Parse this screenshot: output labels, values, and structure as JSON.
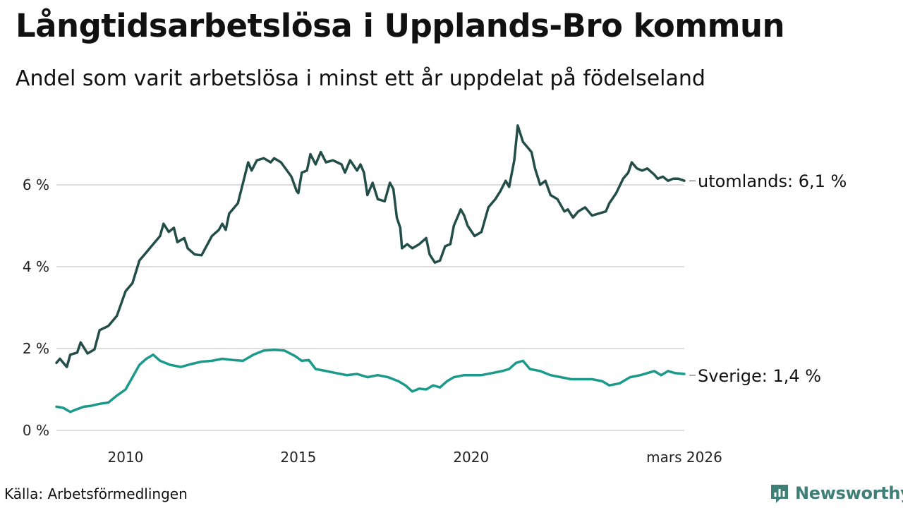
{
  "header": {
    "title": "Långtidsarbetslösa i Upplands-Bro kommun",
    "subtitle": "Andel som varit arbetslösa i minst ett år uppdelat på födelseland"
  },
  "footer": {
    "source": "Källa: Arbetsförmedlingen",
    "brand": "Newsworthy"
  },
  "colors": {
    "utomlands": "#234d48",
    "sverige": "#1b9a8c",
    "grid": "#dddddd",
    "brand": "#3f7f77"
  },
  "chart_data": {
    "type": "line",
    "title": "Långtidsarbetslösa i Upplands-Bro kommun",
    "subtitle": "Andel som varit arbetslösa i minst ett år uppdelat på födelseland",
    "xlabel": "",
    "ylabel": "",
    "grid": true,
    "xlim": [
      2008.0,
      2026.17
    ],
    "ylim": [
      0,
      7.5
    ],
    "y_ticks": [
      {
        "value": 0,
        "label": "0 %"
      },
      {
        "value": 2,
        "label": "2 %"
      },
      {
        "value": 4,
        "label": "4 %"
      },
      {
        "value": 6,
        "label": "6 %"
      }
    ],
    "x_ticks": [
      {
        "value": 2010,
        "label": "2010"
      },
      {
        "value": 2015,
        "label": "2015"
      },
      {
        "value": 2020,
        "label": "2020"
      },
      {
        "value": 2026.17,
        "label": "mars 2026"
      }
    ],
    "series": [
      {
        "name": "utomlands",
        "label": "utomlands: 6,1 %",
        "points": [
          [
            2008.0,
            1.65
          ],
          [
            2008.1,
            1.75
          ],
          [
            2008.3,
            1.55
          ],
          [
            2008.4,
            1.85
          ],
          [
            2008.6,
            1.9
          ],
          [
            2008.7,
            2.15
          ],
          [
            2008.9,
            1.88
          ],
          [
            2009.1,
            1.98
          ],
          [
            2009.25,
            2.45
          ],
          [
            2009.5,
            2.55
          ],
          [
            2009.75,
            2.8
          ],
          [
            2010.0,
            3.4
          ],
          [
            2010.2,
            3.6
          ],
          [
            2010.4,
            4.15
          ],
          [
            2010.6,
            4.35
          ],
          [
            2010.8,
            4.55
          ],
          [
            2011.0,
            4.75
          ],
          [
            2011.1,
            5.05
          ],
          [
            2011.25,
            4.85
          ],
          [
            2011.4,
            4.95
          ],
          [
            2011.5,
            4.6
          ],
          [
            2011.7,
            4.7
          ],
          [
            2011.8,
            4.45
          ],
          [
            2012.0,
            4.3
          ],
          [
            2012.2,
            4.28
          ],
          [
            2012.5,
            4.75
          ],
          [
            2012.7,
            4.9
          ],
          [
            2012.8,
            5.05
          ],
          [
            2012.9,
            4.9
          ],
          [
            2013.0,
            5.3
          ],
          [
            2013.25,
            5.55
          ],
          [
            2013.4,
            6.05
          ],
          [
            2013.55,
            6.55
          ],
          [
            2013.65,
            6.35
          ],
          [
            2013.8,
            6.6
          ],
          [
            2014.0,
            6.65
          ],
          [
            2014.2,
            6.55
          ],
          [
            2014.3,
            6.65
          ],
          [
            2014.5,
            6.55
          ],
          [
            2014.8,
            6.2
          ],
          [
            2014.95,
            5.85
          ],
          [
            2015.0,
            5.8
          ],
          [
            2015.1,
            6.3
          ],
          [
            2015.25,
            6.35
          ],
          [
            2015.35,
            6.75
          ],
          [
            2015.5,
            6.5
          ],
          [
            2015.65,
            6.8
          ],
          [
            2015.8,
            6.55
          ],
          [
            2016.0,
            6.6
          ],
          [
            2016.25,
            6.5
          ],
          [
            2016.35,
            6.3
          ],
          [
            2016.5,
            6.6
          ],
          [
            2016.7,
            6.35
          ],
          [
            2016.8,
            6.5
          ],
          [
            2016.9,
            6.3
          ],
          [
            2017.0,
            5.75
          ],
          [
            2017.15,
            6.05
          ],
          [
            2017.3,
            5.65
          ],
          [
            2017.5,
            5.6
          ],
          [
            2017.65,
            6.05
          ],
          [
            2017.75,
            5.9
          ],
          [
            2017.85,
            5.2
          ],
          [
            2017.95,
            4.95
          ],
          [
            2018.0,
            4.45
          ],
          [
            2018.15,
            4.55
          ],
          [
            2018.3,
            4.45
          ],
          [
            2018.5,
            4.55
          ],
          [
            2018.7,
            4.7
          ],
          [
            2018.8,
            4.3
          ],
          [
            2018.95,
            4.1
          ],
          [
            2019.1,
            4.15
          ],
          [
            2019.25,
            4.5
          ],
          [
            2019.4,
            4.55
          ],
          [
            2019.5,
            5.0
          ],
          [
            2019.7,
            5.4
          ],
          [
            2019.8,
            5.25
          ],
          [
            2019.9,
            5.0
          ],
          [
            2020.1,
            4.75
          ],
          [
            2020.3,
            4.85
          ],
          [
            2020.5,
            5.45
          ],
          [
            2020.7,
            5.65
          ],
          [
            2020.85,
            5.85
          ],
          [
            2021.0,
            6.1
          ],
          [
            2021.1,
            5.95
          ],
          [
            2021.25,
            6.6
          ],
          [
            2021.35,
            7.45
          ],
          [
            2021.5,
            7.05
          ],
          [
            2021.6,
            6.95
          ],
          [
            2021.75,
            6.8
          ],
          [
            2021.85,
            6.4
          ],
          [
            2022.0,
            6.0
          ],
          [
            2022.15,
            6.1
          ],
          [
            2022.3,
            5.75
          ],
          [
            2022.5,
            5.65
          ],
          [
            2022.7,
            5.35
          ],
          [
            2022.8,
            5.4
          ],
          [
            2022.95,
            5.2
          ],
          [
            2023.1,
            5.35
          ],
          [
            2023.3,
            5.45
          ],
          [
            2023.5,
            5.25
          ],
          [
            2023.7,
            5.3
          ],
          [
            2023.9,
            5.35
          ],
          [
            2024.0,
            5.55
          ],
          [
            2024.2,
            5.8
          ],
          [
            2024.4,
            6.15
          ],
          [
            2024.55,
            6.3
          ],
          [
            2024.65,
            6.55
          ],
          [
            2024.8,
            6.4
          ],
          [
            2024.95,
            6.35
          ],
          [
            2025.1,
            6.4
          ],
          [
            2025.3,
            6.25
          ],
          [
            2025.4,
            6.15
          ],
          [
            2025.55,
            6.2
          ],
          [
            2025.7,
            6.1
          ],
          [
            2025.85,
            6.15
          ],
          [
            2026.0,
            6.15
          ],
          [
            2026.17,
            6.1
          ]
        ]
      },
      {
        "name": "Sverige",
        "label": "Sverige: 1,4 %",
        "points": [
          [
            2008.0,
            0.58
          ],
          [
            2008.2,
            0.55
          ],
          [
            2008.4,
            0.45
          ],
          [
            2008.6,
            0.52
          ],
          [
            2008.8,
            0.58
          ],
          [
            2009.0,
            0.6
          ],
          [
            2009.25,
            0.65
          ],
          [
            2009.5,
            0.68
          ],
          [
            2009.75,
            0.85
          ],
          [
            2010.0,
            1.0
          ],
          [
            2010.2,
            1.3
          ],
          [
            2010.4,
            1.6
          ],
          [
            2010.6,
            1.75
          ],
          [
            2010.8,
            1.85
          ],
          [
            2011.0,
            1.7
          ],
          [
            2011.3,
            1.6
          ],
          [
            2011.6,
            1.55
          ],
          [
            2011.9,
            1.62
          ],
          [
            2012.2,
            1.68
          ],
          [
            2012.5,
            1.7
          ],
          [
            2012.8,
            1.75
          ],
          [
            2013.1,
            1.72
          ],
          [
            2013.4,
            1.7
          ],
          [
            2013.7,
            1.85
          ],
          [
            2014.0,
            1.95
          ],
          [
            2014.3,
            1.97
          ],
          [
            2014.6,
            1.95
          ],
          [
            2014.9,
            1.82
          ],
          [
            2015.1,
            1.7
          ],
          [
            2015.3,
            1.72
          ],
          [
            2015.5,
            1.5
          ],
          [
            2015.8,
            1.45
          ],
          [
            2016.1,
            1.4
          ],
          [
            2016.4,
            1.35
          ],
          [
            2016.7,
            1.38
          ],
          [
            2017.0,
            1.3
          ],
          [
            2017.3,
            1.35
          ],
          [
            2017.6,
            1.3
          ],
          [
            2017.9,
            1.2
          ],
          [
            2018.1,
            1.1
          ],
          [
            2018.3,
            0.95
          ],
          [
            2018.5,
            1.02
          ],
          [
            2018.7,
            1.0
          ],
          [
            2018.9,
            1.1
          ],
          [
            2019.1,
            1.05
          ],
          [
            2019.3,
            1.2
          ],
          [
            2019.5,
            1.3
          ],
          [
            2019.8,
            1.35
          ],
          [
            2020.0,
            1.35
          ],
          [
            2020.3,
            1.35
          ],
          [
            2020.6,
            1.4
          ],
          [
            2020.9,
            1.45
          ],
          [
            2021.1,
            1.5
          ],
          [
            2021.3,
            1.65
          ],
          [
            2021.5,
            1.7
          ],
          [
            2021.7,
            1.5
          ],
          [
            2022.0,
            1.45
          ],
          [
            2022.3,
            1.35
          ],
          [
            2022.6,
            1.3
          ],
          [
            2022.9,
            1.25
          ],
          [
            2023.2,
            1.25
          ],
          [
            2023.5,
            1.25
          ],
          [
            2023.8,
            1.2
          ],
          [
            2024.0,
            1.1
          ],
          [
            2024.3,
            1.15
          ],
          [
            2024.6,
            1.3
          ],
          [
            2024.9,
            1.35
          ],
          [
            2025.1,
            1.4
          ],
          [
            2025.3,
            1.45
          ],
          [
            2025.5,
            1.35
          ],
          [
            2025.7,
            1.45
          ],
          [
            2025.9,
            1.4
          ],
          [
            2026.17,
            1.38
          ]
        ]
      }
    ]
  }
}
